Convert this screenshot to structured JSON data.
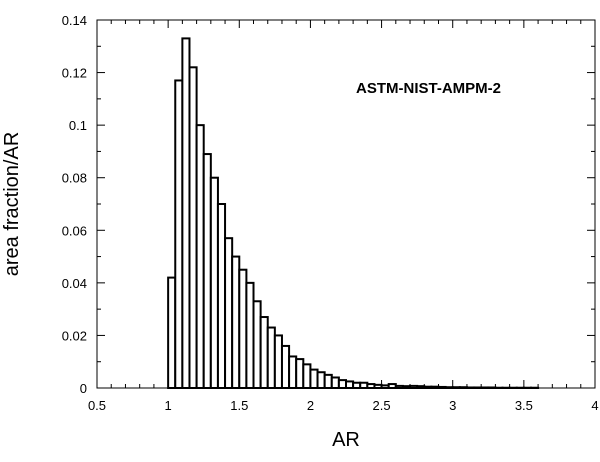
{
  "chart_data": {
    "type": "bar",
    "xlabel": "AR",
    "ylabel": "area fraction/AR",
    "annotation": "ASTM-NIST-AMPM-2",
    "xlim": [
      0.5,
      4
    ],
    "ylim": [
      0,
      0.14
    ],
    "x_ticks": [
      "0.5",
      "1",
      "1.5",
      "2",
      "2.5",
      "3",
      "3.5",
      "4"
    ],
    "y_ticks": [
      "0",
      "0.02",
      "0.04",
      "0.06",
      "0.08",
      "0.1",
      "0.12",
      "0.14"
    ],
    "bin_width": 0.05,
    "bin_starts": [
      1.0,
      1.05,
      1.1,
      1.15,
      1.2,
      1.25,
      1.3,
      1.35,
      1.4,
      1.45,
      1.5,
      1.55,
      1.6,
      1.65,
      1.7,
      1.75,
      1.8,
      1.85,
      1.9,
      1.95,
      2.0,
      2.05,
      2.1,
      2.15,
      2.2,
      2.25,
      2.3,
      2.35,
      2.4,
      2.45,
      2.5,
      2.55,
      2.6,
      2.65,
      2.7,
      2.75,
      2.8,
      2.85,
      2.9,
      2.95,
      3.0,
      3.05,
      3.1,
      3.15,
      3.2,
      3.25,
      3.3,
      3.35,
      3.4,
      3.45,
      3.5,
      3.55
    ],
    "values": [
      0.042,
      0.117,
      0.133,
      0.122,
      0.1,
      0.089,
      0.08,
      0.07,
      0.057,
      0.05,
      0.045,
      0.04,
      0.033,
      0.027,
      0.023,
      0.02,
      0.016,
      0.012,
      0.011,
      0.009,
      0.007,
      0.006,
      0.005,
      0.004,
      0.003,
      0.0025,
      0.002,
      0.002,
      0.0015,
      0.0012,
      0.001,
      0.0015,
      0.0008,
      0.0007,
      0.0008,
      0.0007,
      0.0005,
      0.0005,
      0.0004,
      0.0003,
      0.0003,
      0.0003,
      0.0002,
      0.0002,
      0.0002,
      0.0002,
      0.0001,
      0.0001,
      0.0001,
      0.0001,
      0.0001,
      0.0001
    ]
  }
}
